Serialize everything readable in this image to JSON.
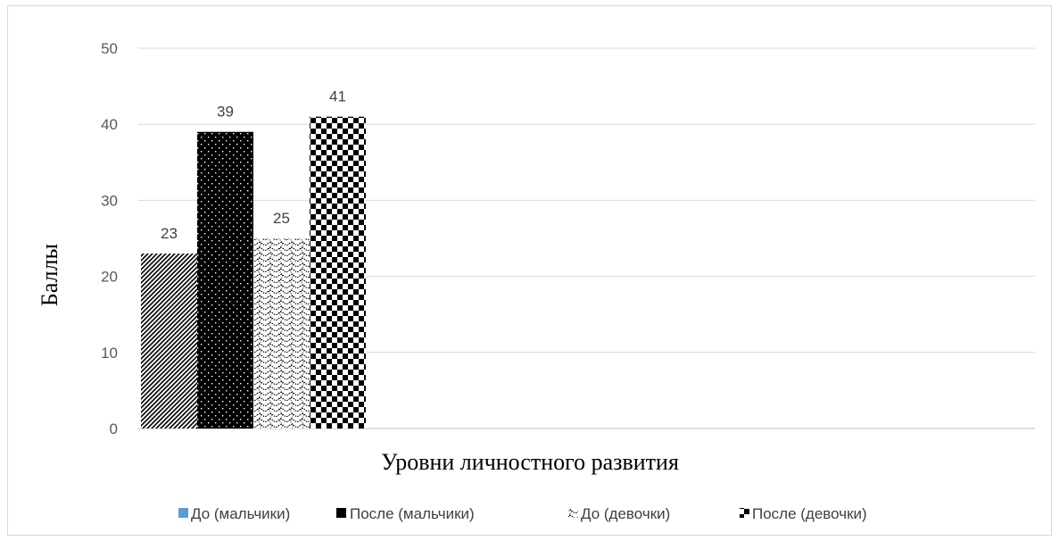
{
  "chart_data": {
    "type": "bar",
    "title": "",
    "xlabel": "Уровни личностного развития",
    "ylabel": "Баллы",
    "ylim": [
      0,
      50
    ],
    "yticks": [
      0,
      10,
      20,
      30,
      40,
      50
    ],
    "grid": true,
    "legend_position": "bottom",
    "categories": [
      ""
    ],
    "series": [
      {
        "name": "До (мальчики)",
        "values": [
          23
        ],
        "legend_marker_color": "#5b9bd5",
        "pattern": "diagonal-lines"
      },
      {
        "name": "После (мальчики)",
        "values": [
          39
        ],
        "pattern": "dots-on-black"
      },
      {
        "name": "До (девочки)",
        "values": [
          25
        ],
        "pattern": "wave-lines"
      },
      {
        "name": "После (девочки)",
        "values": [
          41
        ],
        "pattern": "checkerboard"
      }
    ],
    "data_labels": [
      "23",
      "39",
      "25",
      "41"
    ]
  }
}
